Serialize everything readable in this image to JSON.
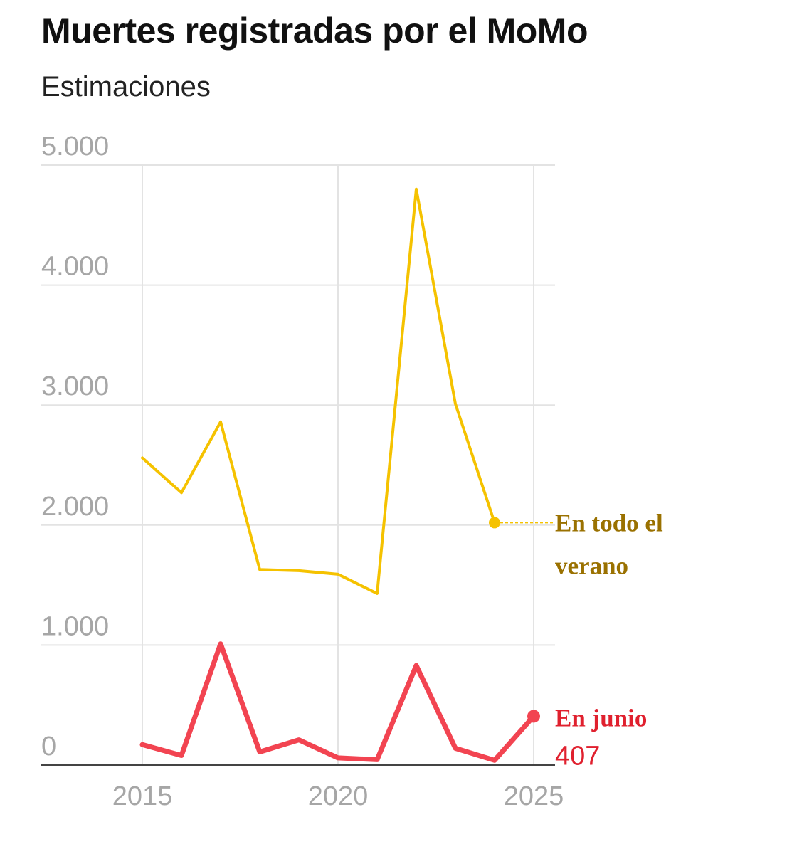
{
  "title": "Muertes registradas por el MoMo",
  "subtitle": "Estimaciones",
  "colors": {
    "summer": "#f5c200",
    "summer_label": "#9a7100",
    "june": "#f24451",
    "june_label": "#e0202e",
    "grid": "#e3e3e3",
    "axis": "#444444",
    "tick": "#a6a6a6"
  },
  "chart_data": {
    "type": "line",
    "title": "Muertes registradas por el MoMo",
    "subtitle": "Estimaciones",
    "xlabel": "",
    "ylabel": "",
    "xlim": [
      2013.5,
      2025.5
    ],
    "ylim": [
      0,
      5000
    ],
    "x_ticks": [
      2015,
      2020,
      2025
    ],
    "x_tick_labels": [
      "2015",
      "2020",
      "2025"
    ],
    "y_ticks": [
      0,
      1000,
      2000,
      3000,
      4000,
      5000
    ],
    "y_tick_labels": [
      "0",
      "1.000",
      "2.000",
      "3.000",
      "4.000",
      "5.000"
    ],
    "grid": true,
    "series": [
      {
        "key": "summer",
        "label_line1": "En todo el",
        "label_line2": "verano",
        "x": [
          2015,
          2016,
          2017,
          2018,
          2019,
          2020,
          2021,
          2022,
          2023,
          2024
        ],
        "values": [
          2560,
          2270,
          2860,
          1630,
          1620,
          1590,
          1430,
          4800,
          3010,
          2020
        ]
      },
      {
        "key": "june",
        "label_line1": "En junio",
        "value_label": "407",
        "x": [
          2015,
          2016,
          2017,
          2018,
          2019,
          2020,
          2021,
          2022,
          2023,
          2024,
          2025
        ],
        "values": [
          170,
          80,
          1010,
          110,
          210,
          60,
          45,
          830,
          140,
          40,
          407
        ]
      }
    ]
  }
}
